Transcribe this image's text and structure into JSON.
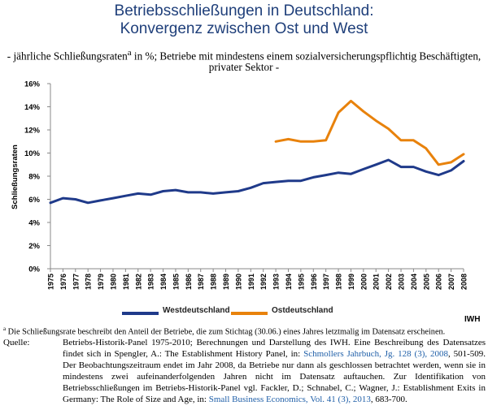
{
  "header": {
    "title_line1": "Betriebsschließungen in Deutschland:",
    "title_line2": "Konvergenz zwischen Ost und West",
    "subtitle_line1": "- jährliche Schließungsraten",
    "subtitle_sup": "a",
    "subtitle_line1_rest": " in %; Betriebe mit mindestens einem sozialversicherungspflichtig Beschäftigten,",
    "subtitle_line2": "privater Sektor -"
  },
  "chart_data": {
    "type": "line",
    "title": "Betriebsschließungen in Deutschland: Konvergenz zwischen Ost und West",
    "ylabel": "Schließungsraten",
    "xlabel": "",
    "ylim": [
      0,
      16
    ],
    "yticks": [
      "0%",
      "2%",
      "4%",
      "6%",
      "8%",
      "10%",
      "12%",
      "14%",
      "16%"
    ],
    "grid": false,
    "legend": "bottom",
    "x": [
      1975,
      1976,
      1977,
      1978,
      1979,
      1980,
      1981,
      1982,
      1983,
      1984,
      1985,
      1986,
      1987,
      1988,
      1989,
      1990,
      1991,
      1992,
      1993,
      1994,
      1995,
      1996,
      1997,
      1998,
      1999,
      2000,
      2001,
      2002,
      2003,
      2004,
      2005,
      2006,
      2007,
      2008
    ],
    "series": [
      {
        "name": "Westdeutschland",
        "color": "#1f3a8a",
        "values": [
          5.7,
          6.1,
          6.0,
          5.7,
          5.9,
          6.1,
          6.3,
          6.5,
          6.4,
          6.7,
          6.8,
          6.6,
          6.6,
          6.5,
          6.6,
          6.7,
          7.0,
          7.4,
          7.5,
          7.6,
          7.6,
          7.9,
          8.1,
          8.3,
          8.2,
          8.6,
          9.0,
          9.4,
          8.8,
          8.8,
          8.4,
          8.1,
          8.5,
          9.3
        ]
      },
      {
        "name": "Ostdeutschland",
        "color": "#e8820c",
        "values": [
          null,
          null,
          null,
          null,
          null,
          null,
          null,
          null,
          null,
          null,
          null,
          null,
          null,
          null,
          null,
          null,
          null,
          null,
          11.0,
          11.2,
          11.0,
          11.0,
          11.1,
          13.5,
          14.5,
          13.6,
          12.8,
          12.1,
          11.1,
          11.1,
          10.4,
          9.0,
          9.2,
          9.9
        ]
      }
    ]
  },
  "footer": {
    "iwh": "IWH",
    "footnote_sup": "a",
    "footnote": " Die Schließungsrate beschreibt den Anteil der Betriebe, die zum Stichtag (30.06.) eines Jahres letztmalig im Datensatz erscheinen.",
    "source_label": "Quelle:",
    "source_part1": "Betriebs-Historik-Panel 1975-2010; Berechnungen und Darstellung des IWH. Eine Beschreibung des Datensatzes findet sich in Spengler, A.: The Establishment History Panel, in: ",
    "source_link1": "Schmollers Jahrbuch, Jg. 128 (3), 2008",
    "source_part2": ", 501-509. Der Beobachtungszeitraum endet im Jahr 2008, da Betriebe nur dann als geschlossen betrachtet werden, wenn sie in mindestens zwei aufeinanderfolgenden Jahren nicht im Datensatz auftauchen. Zur Identifikation von Betriebsschließungen im Betriebs-Historik-Panel vgl. Fackler, D.; Schnabel, C.; Wagner, J.: Establishment Exits in Germany: The Role of Size and Age, in: ",
    "source_link2": "Small Business Economics, Vol. 41 (3), 2013",
    "source_part3": ", 683-700."
  }
}
